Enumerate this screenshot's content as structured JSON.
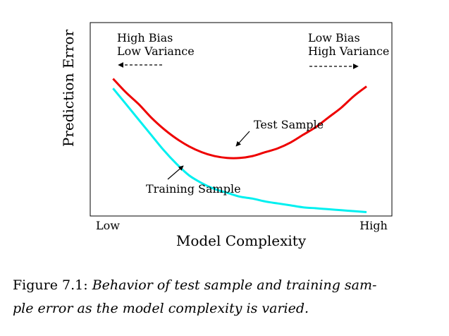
{
  "chart_data": {
    "type": "line",
    "ylabel": "Prediction Error",
    "xlabel": "Model Complexity",
    "x_tick_labels": [
      "Low",
      "High"
    ],
    "x": [
      0.0,
      0.05,
      0.1,
      0.15,
      0.2,
      0.25,
      0.3,
      0.35,
      0.4,
      0.45,
      0.5,
      0.55,
      0.6,
      0.65,
      0.7,
      0.75,
      0.8,
      0.85,
      0.9,
      0.95,
      1.0
    ],
    "xlim": [
      -0.09,
      1.1
    ],
    "ylim": [
      0,
      1
    ],
    "grid": false,
    "series": [
      {
        "name": "Test Sample",
        "color": "#ee0000",
        "values": [
          0.71,
          0.64,
          0.58,
          0.51,
          0.45,
          0.4,
          0.36,
          0.33,
          0.31,
          0.3,
          0.3,
          0.31,
          0.33,
          0.35,
          0.38,
          0.42,
          0.46,
          0.51,
          0.56,
          0.62,
          0.67
        ]
      },
      {
        "name": "Training Sample",
        "color": "#00f0f0",
        "values": [
          0.66,
          0.58,
          0.5,
          0.42,
          0.34,
          0.27,
          0.21,
          0.17,
          0.14,
          0.12,
          0.1,
          0.09,
          0.075,
          0.065,
          0.055,
          0.045,
          0.04,
          0.035,
          0.03,
          0.025,
          0.02
        ]
      }
    ],
    "annotations": [
      {
        "id": "high_bias",
        "lines": [
          "High Bias",
          "Low Variance"
        ],
        "arrow_direction": "left"
      },
      {
        "id": "low_bias",
        "lines": [
          "Low Bias",
          "High Variance"
        ],
        "arrow_direction": "right"
      },
      {
        "id": "test_label",
        "text": "Test Sample",
        "points_to": "Test Sample"
      },
      {
        "id": "train_label",
        "text": "Training Sample",
        "points_to": "Training Sample"
      }
    ]
  },
  "caption": {
    "label": "Figure 7.1:",
    "text": "Behavior of test sample and training sam-",
    "text_line2": "ple error as the model complexity is varied."
  }
}
